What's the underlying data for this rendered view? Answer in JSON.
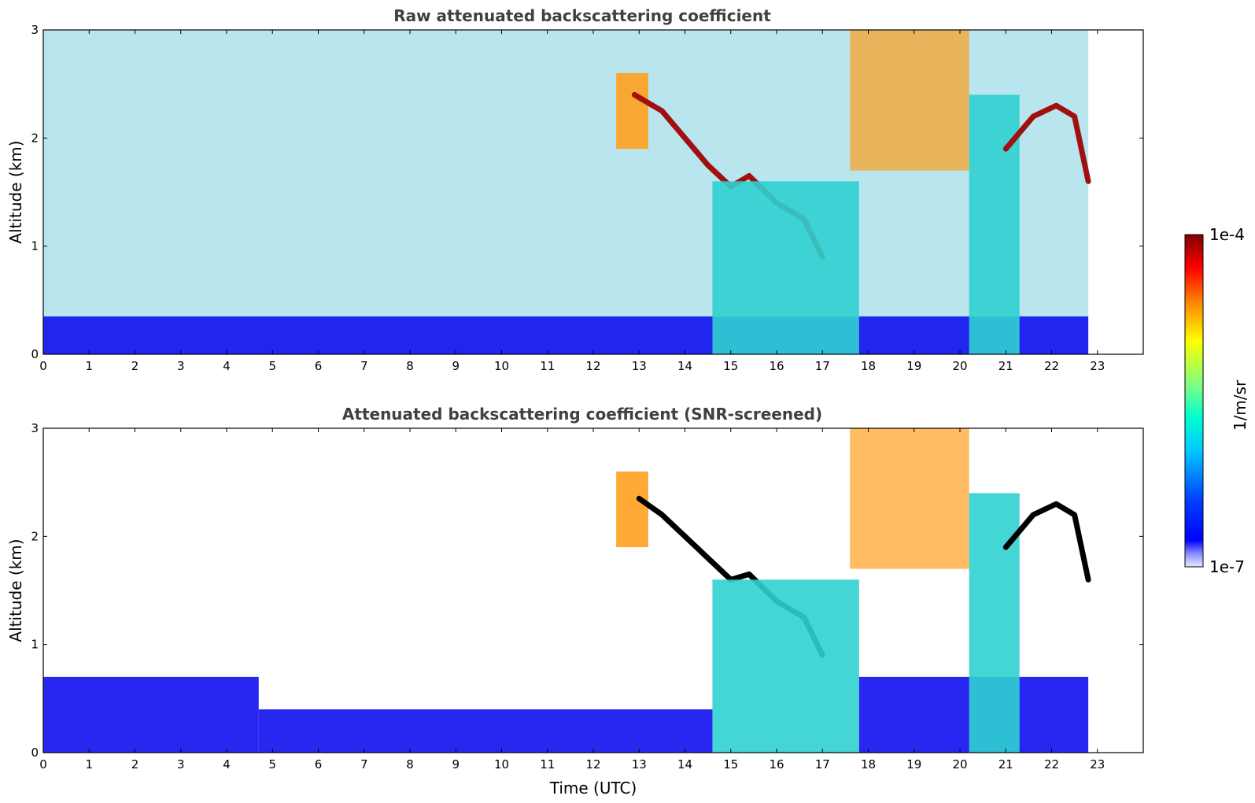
{
  "chart_data": [
    {
      "type": "heatmap",
      "title": "Raw attenuated backscattering coefficient",
      "xlabel": "",
      "ylabel": "Altitude (km)",
      "xlim": [
        0,
        24
      ],
      "ylim": [
        0,
        3
      ],
      "xticks": [
        "0",
        "1",
        "2",
        "3",
        "4",
        "5",
        "6",
        "7",
        "8",
        "9",
        "10",
        "11",
        "12",
        "13",
        "14",
        "15",
        "16",
        "17",
        "18",
        "19",
        "20",
        "21",
        "22",
        "23"
      ],
      "yticks": [
        "0",
        "1",
        "2",
        "3"
      ],
      "data_end_time": 22.8,
      "layers": [
        {
          "feature": "surface_noise_layer",
          "t_start": 0,
          "t_end": 22.8,
          "alt_top": 0.35,
          "level": "low"
        },
        {
          "feature": "elevated_aerosol",
          "t_start": 12.5,
          "t_end": 13.2,
          "alt_bottom": 1.9,
          "alt_top": 2.6,
          "level": "high"
        },
        {
          "feature": "cloud_base_line",
          "points": [
            [
              12.9,
              2.4
            ],
            [
              13.5,
              2.25
            ],
            [
              14.0,
              2.0
            ],
            [
              14.5,
              1.75
            ],
            [
              15.0,
              1.55
            ],
            [
              15.4,
              1.65
            ],
            [
              16.0,
              1.4
            ],
            [
              16.6,
              1.25
            ],
            [
              17.0,
              0.9
            ]
          ],
          "level": "very_high"
        },
        {
          "feature": "precipitation_columns",
          "t_start": 14.6,
          "t_end": 17.8,
          "alt_bottom": 0,
          "alt_top": 1.6,
          "level": "medium_high"
        },
        {
          "feature": "high_cloud",
          "t_start": 17.6,
          "t_end": 20.2,
          "alt_bottom": 1.7,
          "alt_top": 3.0,
          "level": "high"
        },
        {
          "feature": "precipitation_columns",
          "t_start": 20.2,
          "t_end": 21.3,
          "alt_bottom": 0,
          "alt_top": 2.4,
          "level": "medium_high"
        },
        {
          "feature": "cloud_base_line",
          "points": [
            [
              21.0,
              1.9
            ],
            [
              21.6,
              2.2
            ],
            [
              22.1,
              2.3
            ],
            [
              22.5,
              2.2
            ],
            [
              22.8,
              1.6
            ]
          ],
          "level": "very_high"
        }
      ]
    },
    {
      "type": "heatmap",
      "title": "Attenuated backscattering coefficient (SNR-screened)",
      "xlabel": "Time (UTC)",
      "ylabel": "Altitude (km)",
      "xlim": [
        0,
        24
      ],
      "ylim": [
        0,
        3
      ],
      "xticks": [
        "0",
        "1",
        "2",
        "3",
        "4",
        "5",
        "6",
        "7",
        "8",
        "9",
        "10",
        "11",
        "12",
        "13",
        "14",
        "15",
        "16",
        "17",
        "18",
        "19",
        "20",
        "21",
        "22",
        "23"
      ],
      "yticks": [
        "0",
        "1",
        "2",
        "3"
      ],
      "data_end_time": 22.8,
      "layers": [
        {
          "feature": "boundary_layer",
          "t_start": 0,
          "t_end": 4.7,
          "alt_top": 0.7,
          "level": "low"
        },
        {
          "feature": "boundary_layer",
          "t_start": 4.7,
          "t_end": 14.6,
          "alt_top": 0.4,
          "level": "low"
        },
        {
          "feature": "elevated_aerosol",
          "t_start": 12.5,
          "t_end": 13.2,
          "alt_bottom": 1.9,
          "alt_top": 2.6,
          "level": "high"
        },
        {
          "feature": "cloud_base_line",
          "points": [
            [
              13.0,
              2.35
            ],
            [
              13.5,
              2.2
            ],
            [
              14.0,
              2.0
            ],
            [
              14.5,
              1.8
            ],
            [
              15.0,
              1.6
            ],
            [
              15.4,
              1.65
            ],
            [
              16.0,
              1.4
            ],
            [
              16.6,
              1.25
            ],
            [
              17.0,
              0.9
            ]
          ],
          "level": "saturated"
        },
        {
          "feature": "precipitation_columns",
          "t_start": 14.6,
          "t_end": 17.8,
          "alt_bottom": 0,
          "alt_top": 1.6,
          "level": "medium_high"
        },
        {
          "feature": "boundary_layer",
          "t_start": 17.8,
          "t_end": 22.8,
          "alt_top": 0.7,
          "level": "low"
        },
        {
          "feature": "high_cloud",
          "t_start": 17.6,
          "t_end": 20.2,
          "alt_bottom": 1.7,
          "alt_top": 3.0,
          "level": "high"
        },
        {
          "feature": "precipitation_columns",
          "t_start": 20.2,
          "t_end": 21.3,
          "alt_bottom": 0,
          "alt_top": 2.4,
          "level": "medium_high"
        },
        {
          "feature": "cloud_base_line",
          "points": [
            [
              21.0,
              1.9
            ],
            [
              21.6,
              2.2
            ],
            [
              22.1,
              2.3
            ],
            [
              22.5,
              2.2
            ],
            [
              22.8,
              1.6
            ]
          ],
          "level": "saturated"
        }
      ]
    }
  ],
  "colorbar": {
    "label": "1/m/sr",
    "min_label": "1e-7",
    "max_label": "1e-4",
    "scale": "log",
    "range": [
      1e-07,
      0.0001
    ],
    "colormap": "jet"
  },
  "colors": {
    "title_text": "#404040",
    "jet_stops": [
      "#ffffff",
      "#0000ff",
      "#00ffff",
      "#ffff00",
      "#ff0000",
      "#800000"
    ]
  }
}
